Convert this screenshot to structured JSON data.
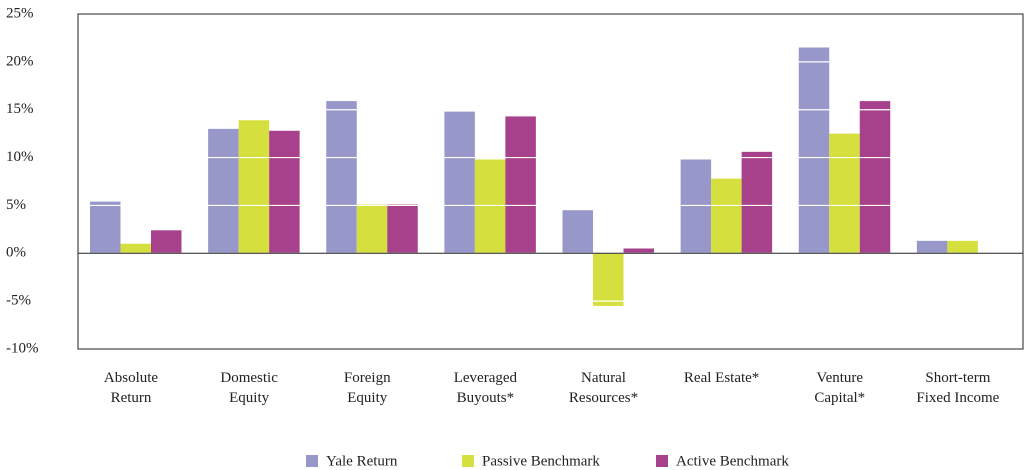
{
  "chart_data": {
    "type": "bar",
    "categories": [
      "Absolute\nReturn",
      "Domestic\nEquity",
      "Foreign\nEquity",
      "Leveraged\nBuyouts*",
      "Natural\nResources*",
      "Real Estate*",
      "Venture\nCapital*",
      "Short-term\nFixed Income"
    ],
    "series": [
      {
        "name": "Yale Return",
        "color": "#9797c9",
        "values": [
          5.4,
          13.0,
          15.9,
          14.8,
          4.5,
          9.8,
          21.5,
          1.3
        ]
      },
      {
        "name": "Passive Benchmark",
        "color": "#d5e03f",
        "values": [
          1.0,
          13.9,
          5.1,
          9.8,
          -5.5,
          7.8,
          12.5,
          1.3
        ]
      },
      {
        "name": "Active Benchmark",
        "color": "#a8418b",
        "values": [
          2.4,
          12.8,
          5.1,
          14.3,
          0.5,
          10.6,
          15.9,
          null
        ]
      }
    ],
    "ylim": [
      -10,
      25
    ],
    "yticks": [
      {
        "value": -10,
        "label": "-10%"
      },
      {
        "value": -5,
        "label": "-5%"
      },
      {
        "value": 0,
        "label": "0%"
      },
      {
        "value": 5,
        "label": "5%"
      },
      {
        "value": 10,
        "label": "10%"
      },
      {
        "value": 15,
        "label": "15%"
      },
      {
        "value": 20,
        "label": "20%"
      },
      {
        "value": 25,
        "label": "25%"
      }
    ],
    "grid": true
  }
}
